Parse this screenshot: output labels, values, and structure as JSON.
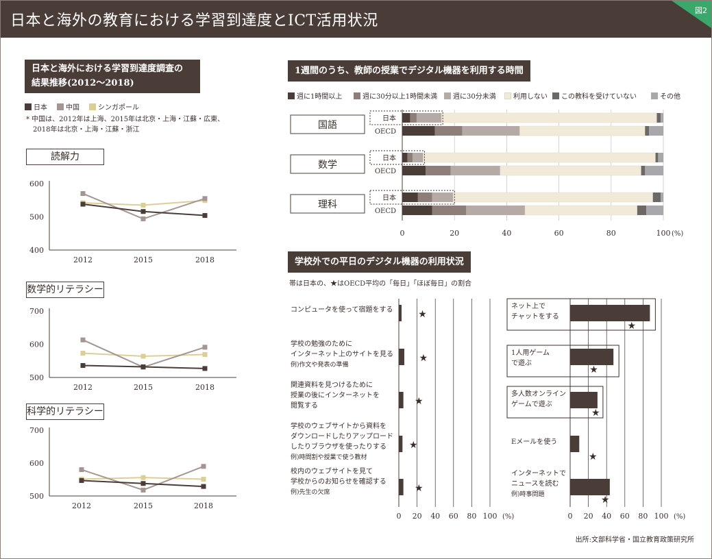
{
  "header": {
    "title": "日本と海外の教育における学習到達度とICT活用状況",
    "figure_tag": "図2"
  },
  "left": {
    "section_title_line1": "日本と海外における学習到達度調査の",
    "section_title_line2": "結果推移(2012〜2018)",
    "legend": [
      {
        "label": "日本",
        "color": "#4a3c37"
      },
      {
        "label": "中国",
        "color": "#a39591"
      },
      {
        "label": "シンガポール",
        "color": "#dccf95"
      }
    ],
    "note_line1": "* 中国は、2012年は上海、2015年は北京・上海・江蘇・広東、",
    "note_line2": "2018年は北京・上海・江蘇・浙江"
  },
  "right_top": {
    "section_title": "1週間のうち、教師の授業でデジタル機器を利用する時間",
    "legend": [
      {
        "label": "週に1時間以上",
        "color": "#4a3c37"
      },
      {
        "label": "週に30分以上1時間未満",
        "color": "#8e7e79"
      },
      {
        "label": "週に30分未満",
        "color": "#b6aaa6"
      },
      {
        "label": "利用しない",
        "color": "#f2ead8"
      },
      {
        "label": "この教科を受けていない",
        "color": "#6c6866"
      },
      {
        "label": "その他",
        "color": "#a8a8ac"
      }
    ]
  },
  "right_bottom": {
    "section_title": "学校外での平日のデジタル機器の利用状況",
    "subtitle": "帯は日本の、★はOECD平均の「毎日」「ほぼ毎日」の割合"
  },
  "source": "出所:文部科学省・国立教育政策研究所",
  "chart_data": [
    {
      "type": "line",
      "title": "読解力",
      "x": [
        "2012",
        "2015",
        "2018"
      ],
      "ylim": [
        400,
        600
      ],
      "yticks": [
        "400",
        "500",
        "600"
      ],
      "series": [
        {
          "name": "日本",
          "values": [
            538,
            516,
            504
          ],
          "color": "#4a3c37"
        },
        {
          "name": "中国",
          "values": [
            570,
            494,
            555
          ],
          "color": "#a39591"
        },
        {
          "name": "シンガポール",
          "values": [
            542,
            535,
            549
          ],
          "color": "#dccf95"
        }
      ]
    },
    {
      "type": "line",
      "title": "数学的リテラシー",
      "x": [
        "2012",
        "2015",
        "2018"
      ],
      "ylim": [
        500,
        700
      ],
      "yticks": [
        "500",
        "600",
        "700"
      ],
      "series": [
        {
          "name": "日本",
          "values": [
            536,
            532,
            527
          ],
          "color": "#4a3c37"
        },
        {
          "name": "中国",
          "values": [
            613,
            531,
            591
          ],
          "color": "#a39591"
        },
        {
          "name": "シンガポール",
          "values": [
            573,
            564,
            569
          ],
          "color": "#dccf95"
        }
      ]
    },
    {
      "type": "line",
      "title": "科学的リテラシー",
      "x": [
        "2012",
        "2015",
        "2018"
      ],
      "ylim": [
        500,
        700
      ],
      "yticks": [
        "500",
        "600",
        "700"
      ],
      "series": [
        {
          "name": "日本",
          "values": [
            547,
            538,
            529
          ],
          "color": "#4a3c37"
        },
        {
          "name": "中国",
          "values": [
            580,
            518,
            590
          ],
          "color": "#a39591"
        },
        {
          "name": "シンガポール",
          "values": [
            551,
            556,
            551
          ],
          "color": "#dccf95"
        }
      ]
    },
    {
      "type": "bar",
      "stacked": true,
      "orientation": "horizontal",
      "title": "1週間のうち、教師の授業でデジタル機器を利用する時間",
      "xlim": [
        0,
        100
      ],
      "xticks": [
        "0",
        "20",
        "40",
        "60",
        "80",
        "100"
      ],
      "unit": "(%)",
      "groups": [
        {
          "subject": "国語",
          "rows": [
            {
              "name": "日本",
              "values": [
                3,
                2.5,
                9.5,
                82.5,
                1.5,
                1
              ],
              "highlight": true
            },
            {
              "name": "OECD",
              "values": [
                12.5,
                10.5,
                22,
                48,
                1.5,
                5.5
              ]
            }
          ]
        },
        {
          "subject": "数学",
          "rows": [
            {
              "name": "日本",
              "values": [
                2,
                2,
                4,
                89,
                1,
                2
              ],
              "highlight": true
            },
            {
              "name": "OECD",
              "values": [
                9,
                9.5,
                19,
                54,
                1.5,
                7
              ]
            }
          ]
        },
        {
          "subject": "理科",
          "rows": [
            {
              "name": "日本",
              "values": [
                6,
                5.5,
                8,
                76.5,
                3,
                1
              ],
              "highlight": true
            },
            {
              "name": "OECD",
              "values": [
                11.5,
                13,
                22.5,
                43,
                3.5,
                6.5
              ]
            }
          ]
        }
      ]
    },
    {
      "type": "bar",
      "orientation": "horizontal",
      "title": "学校外での平日のデジタル機器の利用状況(学習)",
      "xlim": [
        0,
        100
      ],
      "xticks": [
        "0",
        "20",
        "40",
        "60",
        "80",
        "100"
      ],
      "unit": "(%)",
      "categories": [
        [
          "コンピュータを使って宿題をする"
        ],
        [
          "学校の勉強のために",
          "インターネット上のサイトを見る",
          "例)作文や発表の準備"
        ],
        [
          "関連資料を見つけるために",
          "授業の後にインターネットを",
          "閲覧する"
        ],
        [
          "学校のウェブサイトから資料を",
          "ダウンロードしたりアップロード",
          "したりブラウザを使ったりする",
          "例)時間割や授業で使う教材"
        ],
        [
          "校内のウェブサイトを見て",
          "学校からのお知らせを確認する",
          "例)先生の欠席"
        ]
      ],
      "series": [
        {
          "name": "日本",
          "values": [
            3,
            6,
            5,
            4,
            5
          ]
        },
        {
          "name": "OECD",
          "values": [
            26,
            27,
            22,
            16,
            22
          ]
        }
      ]
    },
    {
      "type": "bar",
      "orientation": "horizontal",
      "title": "学校外での平日のデジタル機器の利用状況(趣味)",
      "xlim": [
        0,
        100
      ],
      "xticks": [
        "0",
        "20",
        "40",
        "60",
        "80",
        "100"
      ],
      "unit": "(%)",
      "categories": [
        [
          "ネット上で",
          "チャットをする"
        ],
        [
          "1人用ゲーム",
          "で遊ぶ"
        ],
        [
          "多人数オンライン",
          "ゲームで遊ぶ"
        ],
        [
          "Eメールを使う"
        ],
        [
          "インターネットで",
          "ニュースを読む",
          "例)時事問題"
        ]
      ],
      "series": [
        {
          "name": "日本",
          "values": [
            87.5,
            47.5,
            30,
            10,
            43.5
          ]
        },
        {
          "name": "OECD",
          "values": [
            67.5,
            26,
            28,
            25,
            38.5
          ]
        }
      ]
    }
  ]
}
